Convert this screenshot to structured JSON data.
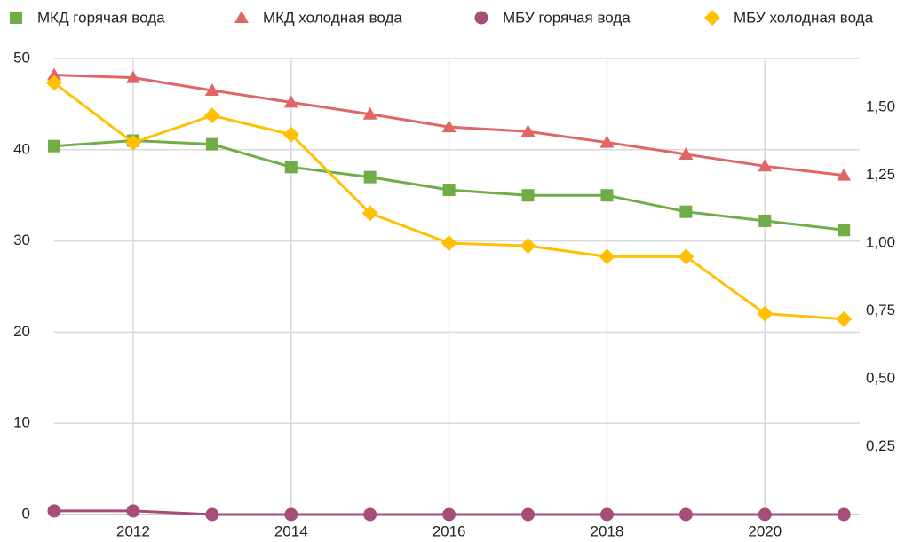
{
  "chart_data": {
    "type": "line",
    "x": [
      2011,
      2012,
      2013,
      2014,
      2015,
      2016,
      2017,
      2018,
      2019,
      2020,
      2021
    ],
    "xlim": [
      2011,
      2021.2
    ],
    "xticks": [
      2012,
      2014,
      2016,
      2018,
      2020
    ],
    "ylim": [
      0,
      50
    ],
    "yticks": [
      0,
      10,
      20,
      30,
      40,
      50
    ],
    "y2lim": [
      0,
      1.68
    ],
    "y2ticks": [
      {
        "value": 0.25,
        "label": "0,25"
      },
      {
        "value": 0.5,
        "label": "0,50"
      },
      {
        "value": 0.75,
        "label": "0,75"
      },
      {
        "value": 1.0,
        "label": "1,00"
      },
      {
        "value": 1.25,
        "label": "1,25"
      },
      {
        "value": 1.5,
        "label": "1,50"
      }
    ],
    "grid": true,
    "legend": "top",
    "series": [
      {
        "name": "МКД  горячая вода",
        "color": "#70ad47",
        "marker": "square",
        "values": [
          40.4,
          41.0,
          40.6,
          38.1,
          37.0,
          35.6,
          35.0,
          35.0,
          33.2,
          32.2,
          31.2
        ]
      },
      {
        "name": "МКД холодная вода",
        "color": "#e06666",
        "marker": "triangle",
        "values": [
          48.2,
          47.9,
          46.5,
          45.2,
          43.9,
          42.5,
          42.0,
          40.8,
          39.5,
          38.2,
          37.2
        ]
      },
      {
        "name": "МБУ горячая вода",
        "color": "#a64d79",
        "marker": "circle",
        "values": [
          0.4,
          0.4,
          0,
          0,
          0,
          0,
          0,
          0,
          0,
          0,
          0
        ]
      },
      {
        "name": "МБУ холодная вода",
        "color": "#ffc000",
        "marker": "diamond",
        "axis": "y2",
        "values": [
          1.59,
          1.37,
          1.47,
          1.4,
          1.11,
          1.0,
          0.99,
          0.95,
          0.95,
          0.74,
          0.72
        ]
      }
    ]
  }
}
